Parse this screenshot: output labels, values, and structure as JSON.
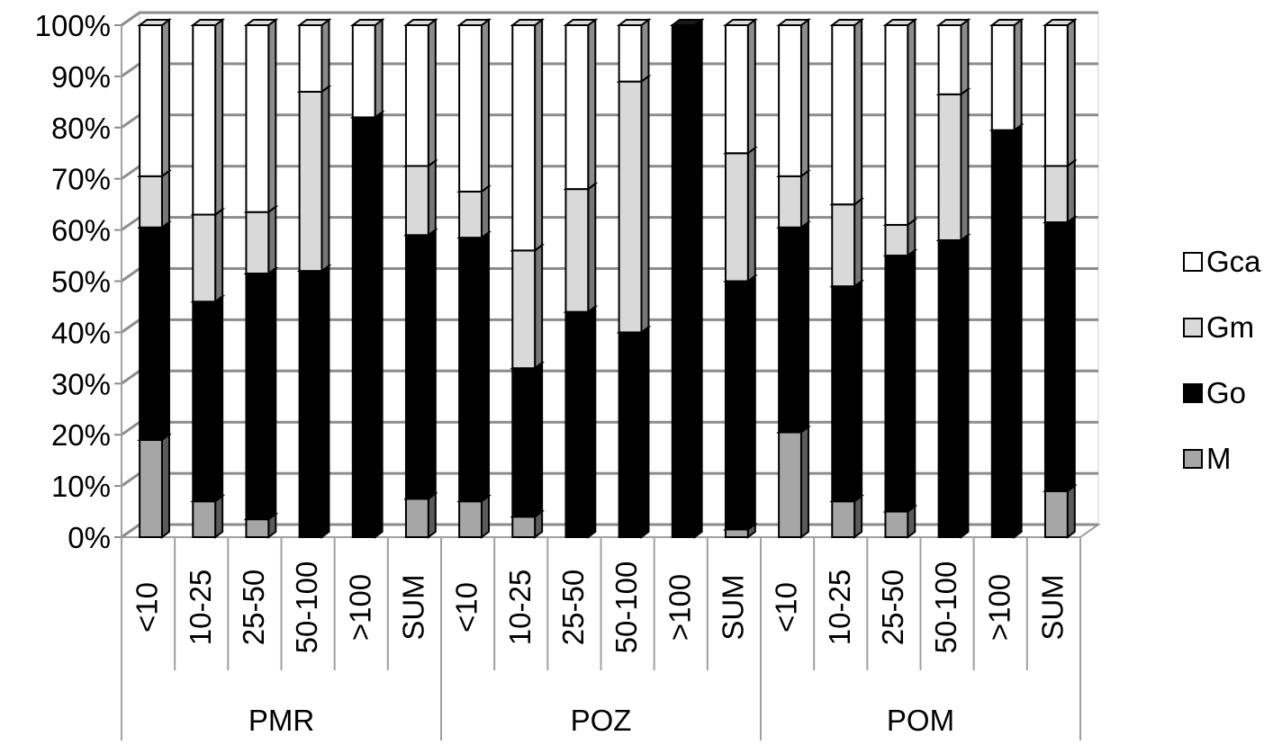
{
  "chart_data": {
    "type": "bar",
    "stacked": true,
    "percent_stacked": true,
    "style": "3d",
    "ylim": [
      0,
      100
    ],
    "ytick_values": [
      0,
      10,
      20,
      30,
      40,
      50,
      60,
      70,
      80,
      90,
      100
    ],
    "ytick_labels": [
      "0%",
      "10%",
      "20%",
      "30%",
      "40%",
      "50%",
      "60%",
      "70%",
      "80%",
      "90%",
      "100%"
    ],
    "grid": true,
    "legend_position": "right",
    "groups": [
      {
        "label": "PMR",
        "categories": [
          "<10",
          "10-25",
          "25-50",
          "50-100",
          ">100",
          "SUM"
        ]
      },
      {
        "label": "POZ",
        "categories": [
          "<10",
          "10-25",
          "25-50",
          "50-100",
          ">100",
          "SUM"
        ]
      },
      {
        "label": "POM",
        "categories": [
          "<10",
          "10-25",
          "25-50",
          "50-100",
          ">100",
          "SUM"
        ]
      }
    ],
    "series": [
      {
        "name": "M",
        "color": "#a6a6a6",
        "values": [
          19,
          7,
          3.5,
          0,
          0,
          7.5,
          7,
          4,
          0,
          0,
          0,
          1.5,
          20.5,
          7,
          5,
          0,
          0,
          9
        ]
      },
      {
        "name": "Go",
        "color": "#000000",
        "values": [
          41.5,
          39,
          48,
          52,
          82,
          51.5,
          51.5,
          29,
          44,
          40,
          100,
          48.5,
          40,
          42,
          50,
          58,
          79.5,
          52.5
        ]
      },
      {
        "name": "Gm",
        "color": "#d9d9d9",
        "values": [
          10,
          17,
          12,
          35,
          0,
          13.5,
          9,
          23,
          24,
          49,
          0,
          25,
          10,
          16,
          6,
          28.5,
          0,
          11
        ]
      },
      {
        "name": "Gca",
        "color": "#ffffff",
        "values": [
          29.5,
          37,
          36.5,
          13,
          18,
          27.5,
          32.5,
          44,
          32,
          11,
          0,
          25,
          29.5,
          35,
          39,
          13.5,
          20.5,
          27.5
        ]
      }
    ],
    "legend_order": [
      "Gca",
      "Gm",
      "Go",
      "M"
    ]
  }
}
